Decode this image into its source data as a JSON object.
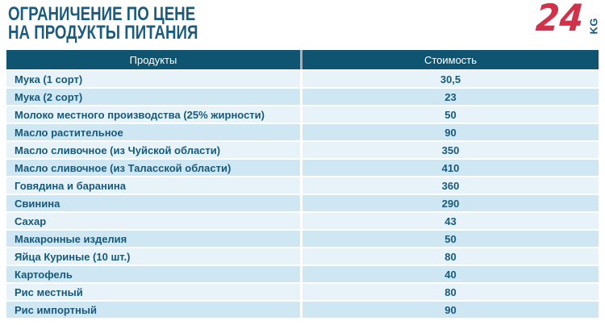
{
  "header": {
    "title_line1": "ОГРАНИЧЕНИЕ ПО ЦЕНЕ",
    "title_line2": "НА ПРОДУКТЫ ПИТАНИЯ"
  },
  "logo": {
    "number": "24",
    "suffix": "KG"
  },
  "colors": {
    "title_color": "#1a5b7e",
    "header_bg": "#0f5571",
    "header_text": "#ffffff",
    "divider_header": "#9db3bf",
    "row_light": "#e8f3f9",
    "row_dark": "#cfe7f2",
    "row_text": "#17597c",
    "logo_red": "#d3304a",
    "logo_blue": "#15597c"
  },
  "table": {
    "columns": [
      "Продукты",
      "Стоимость"
    ],
    "rows": [
      {
        "product": "Мука (1 сорт)",
        "price": "30,5"
      },
      {
        "product": "Мука (2 сорт)",
        "price": "23"
      },
      {
        "product": "Молоко местного производства (25% жирности)",
        "price": "50"
      },
      {
        "product": "Масло растительное",
        "price": "90"
      },
      {
        "product": "Масло сливочное (из Чуйской области)",
        "price": "350"
      },
      {
        "product": "Масло сливочное (из Таласской области)",
        "price": "410"
      },
      {
        "product": "Говядина и баранина",
        "price": "360"
      },
      {
        "product": "Свинина",
        "price": "290"
      },
      {
        "product": "Сахар",
        "price": "43"
      },
      {
        "product": "Макаронные изделия",
        "price": "50"
      },
      {
        "product": "Яйца Куриные (10 шт.)",
        "price": "80"
      },
      {
        "product": "Картофель",
        "price": "40"
      },
      {
        "product": "Рис местный",
        "price": "80"
      },
      {
        "product": "Рис импортный",
        "price": "90"
      }
    ]
  },
  "chart_data": {
    "type": "table",
    "title": "ОГРАНИЧЕНИЕ ПО ЦЕНЕ НА ПРОДУКТЫ ПИТАНИЯ",
    "columns": [
      "Продукты",
      "Стоимость"
    ],
    "rows": [
      [
        "Мука (1 сорт)",
        "30,5"
      ],
      [
        "Мука (2 сорт)",
        "23"
      ],
      [
        "Молоко местного производства (25% жирности)",
        "50"
      ],
      [
        "Масло растительное",
        "90"
      ],
      [
        "Масло сливочное (из Чуйской области)",
        "350"
      ],
      [
        "Масло сливочное (из Таласской области)",
        "410"
      ],
      [
        "Говядина и баранина",
        "360"
      ],
      [
        "Свинина",
        "290"
      ],
      [
        "Сахар",
        "43"
      ],
      [
        "Макаронные изделия",
        "50"
      ],
      [
        "Яйца Куриные (10 шт.)",
        "80"
      ],
      [
        "Картофель",
        "40"
      ],
      [
        "Рис местный",
        "80"
      ],
      [
        "Рис импортный",
        "90"
      ]
    ]
  }
}
